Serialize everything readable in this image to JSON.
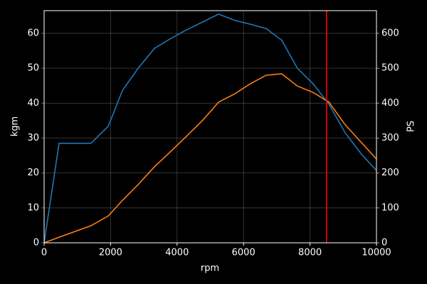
{
  "chart_data": {
    "type": "line",
    "xlabel": "rpm",
    "ylabel": "kgm",
    "y2label": "PS",
    "x": [
      0,
      450,
      1410,
      1930,
      2360,
      2830,
      3320,
      3790,
      4280,
      4780,
      5250,
      5740,
      6210,
      6680,
      7150,
      7620,
      8090,
      8570,
      9060,
      9530,
      10000
    ],
    "series": [
      {
        "color": "#1f77b4",
        "axis": "y",
        "values": [
          0,
          28.5,
          28.5,
          33.4,
          43.7,
          50,
          55.7,
          58.4,
          61,
          63.3,
          65.5,
          63.7,
          62.6,
          61.4,
          58,
          50,
          45.6,
          39.7,
          31.5,
          25.6,
          20.7
        ]
      },
      {
        "color": "#ff7f0e",
        "axis": "y2",
        "values": [
          0,
          16,
          49,
          77,
          122,
          167,
          218,
          260,
          305,
          352,
          403,
          427,
          456,
          480,
          484,
          449,
          431,
          403,
          338,
          289,
          240
        ]
      }
    ],
    "vline": {
      "x": 8500,
      "color": "#ff0000"
    },
    "xlim": [
      0,
      10000
    ],
    "xticks": [
      0,
      2000,
      4000,
      6000,
      8000,
      10000
    ],
    "ylim": [
      0,
      66.5
    ],
    "yticks": [
      0,
      10,
      20,
      30,
      40,
      50,
      60
    ],
    "y2lim": [
      0,
      665
    ],
    "y2ticks": [
      0,
      100,
      200,
      300,
      400,
      500,
      600
    ],
    "grid": true
  }
}
